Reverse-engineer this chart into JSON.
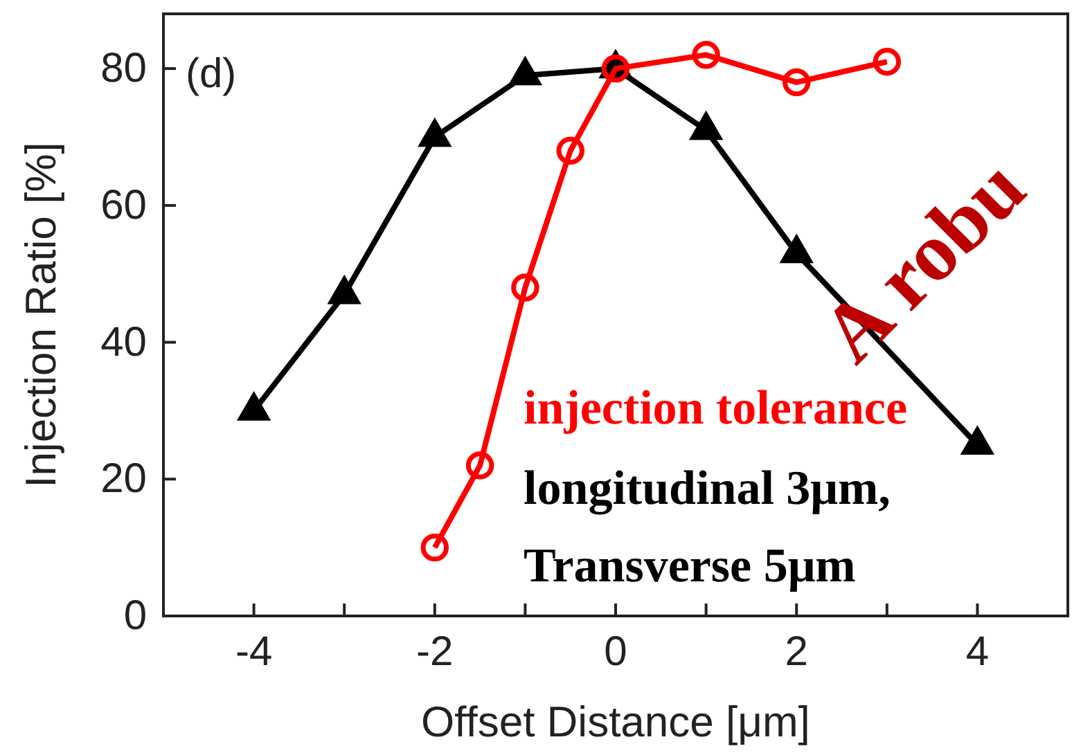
{
  "chart_data": {
    "type": "line",
    "xlabel": "Offset Distance [μm]",
    "ylabel": "Injection Ratio [%]",
    "xlim": [
      -5,
      5
    ],
    "ylim": [
      0,
      88
    ],
    "xticks": [
      {
        "value": -5,
        "label": null
      },
      -4,
      {
        "value": -3,
        "label": null
      },
      -2,
      {
        "value": -1,
        "label": null
      },
      0,
      {
        "value": 1,
        "label": null
      },
      2,
      {
        "value": 3,
        "label": null
      },
      4,
      {
        "value": 5,
        "label": null
      }
    ],
    "yticks": [
      0,
      20,
      40,
      60,
      80
    ],
    "grid": false,
    "series": [
      {
        "color": "#000000",
        "marker": "triangle",
        "x": [
          -4,
          -3,
          -2,
          -1,
          0,
          1,
          2,
          4
        ],
        "values": [
          30,
          47,
          70,
          79,
          80,
          71,
          53,
          25
        ]
      },
      {
        "color": "#ff0000",
        "marker": "circle",
        "x": [
          -2,
          -1.5,
          -1,
          -0.5,
          0,
          1,
          2,
          3
        ],
        "values": [
          10,
          22,
          48,
          68,
          80,
          82,
          78,
          81
        ]
      }
    ],
    "annotations": [
      "(d)",
      "injection tolerance",
      "longitudinal 3μm,",
      "Transverse 5μm",
      "A robu"
    ]
  }
}
